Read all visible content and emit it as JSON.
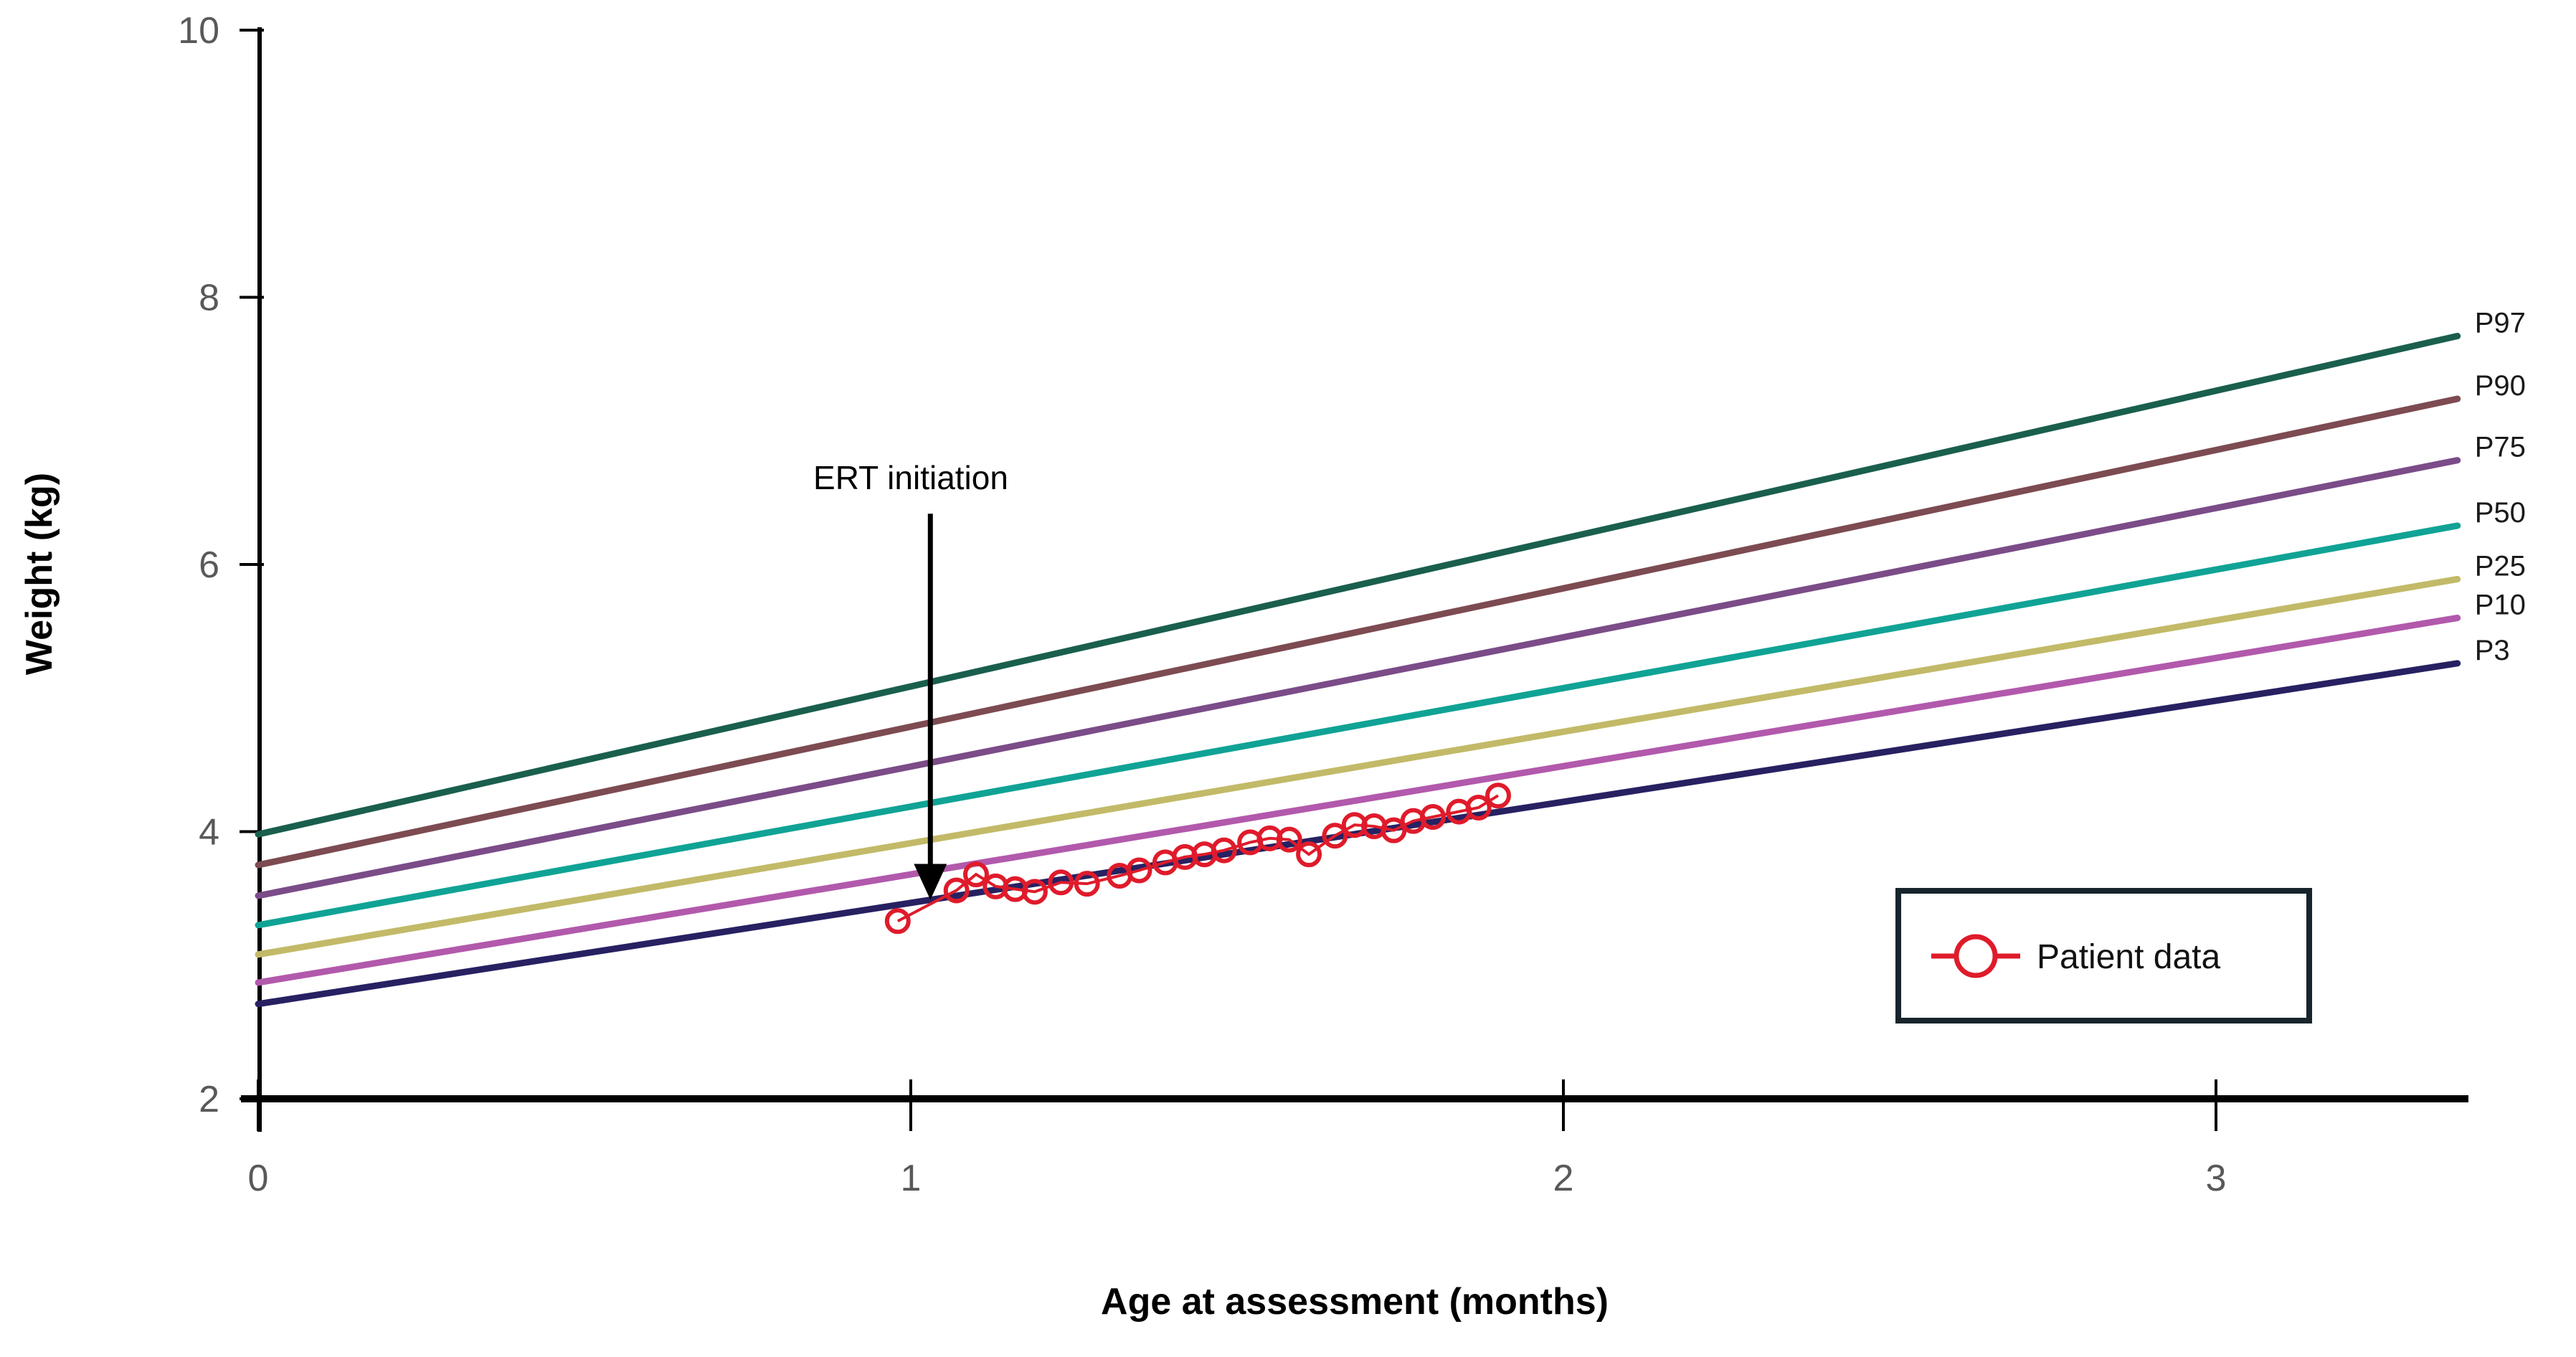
{
  "page": {
    "background": "#ffffff"
  },
  "chart_data": {
    "type": "line",
    "title": "",
    "xlabel": "Age at assessment (months)",
    "ylabel": "Weight (kg)",
    "xlim": [
      0,
      3.4
    ],
    "ylim": [
      2,
      10
    ],
    "x_ticks": [
      0,
      1,
      2,
      3
    ],
    "y_ticks": [
      2,
      4,
      6,
      8,
      10
    ],
    "grid": false,
    "axis_color": "#000000",
    "tick_label_color": "#595959",
    "legend_position": "bottom-right inside plot",
    "percentile_series": [
      {
        "name": "P97",
        "color": "#1a5f4d",
        "x": [
          0,
          3.37
        ],
        "y": [
          3.98,
          7.71
        ]
      },
      {
        "name": "P90",
        "color": "#7d4b52",
        "x": [
          0,
          3.37
        ],
        "y": [
          3.75,
          7.24
        ]
      },
      {
        "name": "P75",
        "color": "#7b4c88",
        "x": [
          0,
          3.37
        ],
        "y": [
          3.52,
          6.78
        ]
      },
      {
        "name": "P50",
        "color": "#10a395",
        "x": [
          0,
          3.37
        ],
        "y": [
          3.3,
          6.29
        ]
      },
      {
        "name": "P25",
        "color": "#c2ba68",
        "x": [
          0,
          3.37
        ],
        "y": [
          3.08,
          5.89
        ]
      },
      {
        "name": "P10",
        "color": "#b259ac",
        "x": [
          0,
          3.37
        ],
        "y": [
          2.87,
          5.6
        ]
      },
      {
        "name": "P3",
        "color": "#272162",
        "x": [
          0,
          3.37
        ],
        "y": [
          2.71,
          5.26
        ]
      }
    ],
    "patient_series": {
      "name": "Patient data",
      "color": "#df1b2b",
      "marker": "open-circle",
      "points": [
        [
          0.98,
          3.33
        ],
        [
          1.07,
          3.56
        ],
        [
          1.1,
          3.68
        ],
        [
          1.13,
          3.59
        ],
        [
          1.16,
          3.57
        ],
        [
          1.19,
          3.55
        ],
        [
          1.23,
          3.62
        ],
        [
          1.27,
          3.61
        ],
        [
          1.32,
          3.67
        ],
        [
          1.35,
          3.71
        ],
        [
          1.39,
          3.77
        ],
        [
          1.42,
          3.81
        ],
        [
          1.45,
          3.83
        ],
        [
          1.48,
          3.86
        ],
        [
          1.52,
          3.92
        ],
        [
          1.55,
          3.95
        ],
        [
          1.58,
          3.94
        ],
        [
          1.61,
          3.83
        ],
        [
          1.65,
          3.97
        ],
        [
          1.68,
          4.05
        ],
        [
          1.71,
          4.04
        ],
        [
          1.74,
          4.01
        ],
        [
          1.77,
          4.08
        ],
        [
          1.8,
          4.11
        ],
        [
          1.84,
          4.15
        ],
        [
          1.87,
          4.18
        ],
        [
          1.9,
          4.27
        ]
      ]
    },
    "annotation": {
      "text": "ERT initiation",
      "text_x_months": 1.0,
      "text_y_kg": 6.65,
      "arrow_x_months": 1.03,
      "arrow_from_kg": 6.38,
      "arrow_to_kg": 3.49
    },
    "legend": {
      "label": "Patient data",
      "border_color": "#17242c",
      "marker_color": "#df1b2b"
    }
  }
}
